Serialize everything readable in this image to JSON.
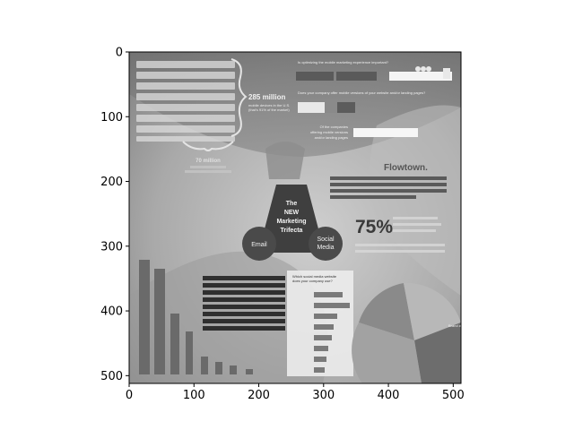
{
  "chart_data": {
    "type": "image",
    "axes": {
      "x_ticks": [
        0,
        100,
        200,
        300,
        400,
        500
      ],
      "y_ticks": [
        0,
        100,
        200,
        300,
        400,
        500
      ],
      "xlim": [
        0,
        512
      ],
      "ylim": [
        512,
        0
      ],
      "y_inverted": true,
      "colormap": "gray",
      "grid": false
    },
    "image_text": {
      "stat_285": "285 million",
      "stat_285_caption1": "mobile devices in the U.S.",
      "stat_285_caption2": "(that's 91% of the market)",
      "stat_70": "70 million",
      "center_title_1": "The",
      "center_title_2": "NEW",
      "center_title_3": "Marketing",
      "center_title_4": "Trifecta",
      "email": "Email",
      "social_1": "Social",
      "social_2": "Media",
      "pct_75": "75%",
      "brand": "Flowtown.",
      "q1": "Is optimizing the mobile marketing experience important?",
      "q2": "Does your company offer mobile versions of your website and/or landing pages?",
      "q3_1": "Of the companies",
      "q3_2": "offering mobile versions",
      "q3_3": "and/or landing pages",
      "social_q_1": "Which social media website",
      "social_q_2": "does your company use?",
      "pie_right_label": "Brand awareness"
    }
  }
}
